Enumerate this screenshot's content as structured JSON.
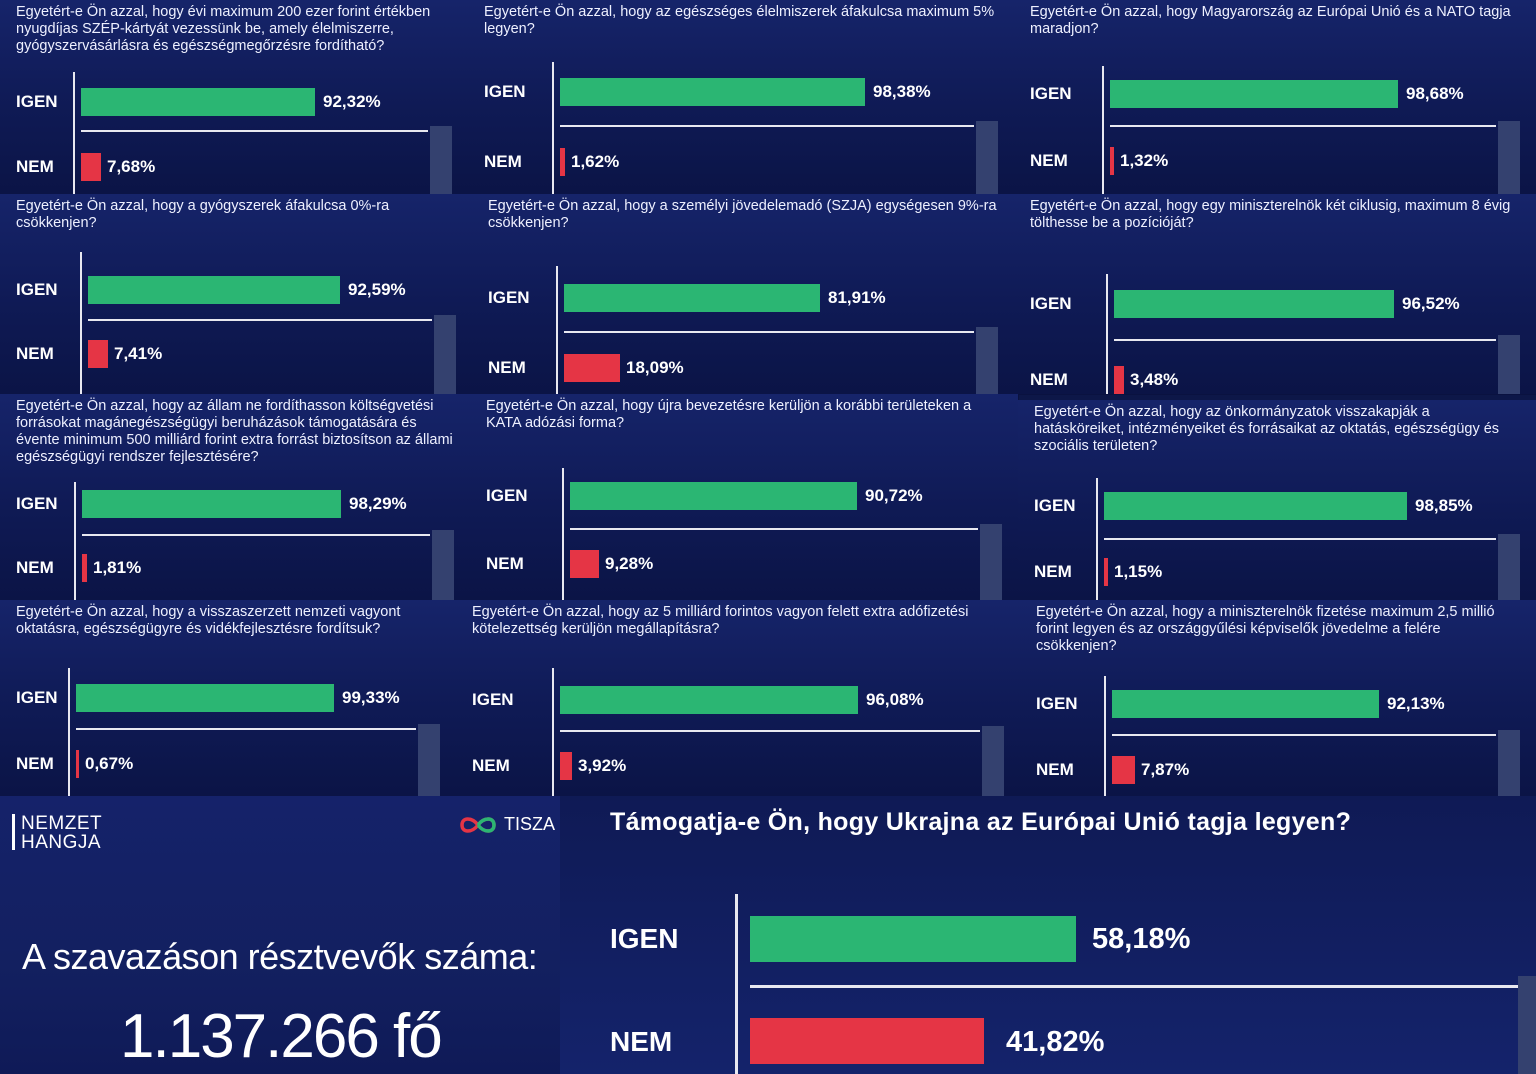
{
  "colors": {
    "yes": "#2bb673",
    "no": "#e53545",
    "background": "#0f1a55"
  },
  "labels": {
    "yes": "IGEN",
    "no": "NEM"
  },
  "brand": {
    "line1": "NEMZET",
    "line2": "HANGJA",
    "partner": "TISZA",
    "partner_icon": "infinity-logo-icon"
  },
  "voters": {
    "label": "A szavazáson résztvevők száma:",
    "count": "1.137.266 fő"
  },
  "chart_data": [
    {
      "type": "bar",
      "title": "Egyetért-e Ön azzal, hogy évi maximum 200 ezer forint értékben nyugdíjas SZÉP-kártyát vezessünk be, amely élelmiszerre, gyógyszervásárlásra és egészségmegőrzésre fordítható?",
      "categories": [
        "IGEN",
        "NEM"
      ],
      "values": [
        92.32,
        7.68
      ],
      "value_labels": [
        "92,32%",
        "7,68%"
      ]
    },
    {
      "type": "bar",
      "title": "Egyetért-e Ön azzal, hogy az egészséges élelmiszerek áfakulcsa maximum 5% legyen?",
      "categories": [
        "IGEN",
        "NEM"
      ],
      "values": [
        98.38,
        1.62
      ],
      "value_labels": [
        "98,38%",
        "1,62%"
      ]
    },
    {
      "type": "bar",
      "title": "Egyetért-e Ön azzal, hogy Magyarország az Európai Unió és a NATO tagja maradjon?",
      "categories": [
        "IGEN",
        "NEM"
      ],
      "values": [
        98.68,
        1.32
      ],
      "value_labels": [
        "98,68%",
        "1,32%"
      ]
    },
    {
      "type": "bar",
      "title": "Egyetért-e Ön azzal, hogy a gyógyszerek áfakulcsa 0%-ra csökkenjen?",
      "categories": [
        "IGEN",
        "NEM"
      ],
      "values": [
        92.59,
        7.41
      ],
      "value_labels": [
        "92,59%",
        "7,41%"
      ]
    },
    {
      "type": "bar",
      "title": "Egyetért-e Ön azzal, hogy a személyi jövedelemadó (SZJA) egységesen 9%-ra csökkenjen?",
      "categories": [
        "IGEN",
        "NEM"
      ],
      "values": [
        81.91,
        18.09
      ],
      "value_labels": [
        "81,91%",
        "18,09%"
      ]
    },
    {
      "type": "bar",
      "title": "Egyetért-e Ön azzal, hogy egy miniszterelnök két ciklusig, maximum 8 évig tölthesse be a pozícióját?",
      "categories": [
        "IGEN",
        "NEM"
      ],
      "values": [
        96.52,
        3.48
      ],
      "value_labels": [
        "96,52%",
        "3,48%"
      ]
    },
    {
      "type": "bar",
      "title": "Egyetért-e Ön azzal, hogy az állam ne fordíthasson költségvetési forrásokat magánegészségügyi beruházások támogatására és évente minimum 500 milliárd forint extra forrást biztosítson az állami egészségügyi rendszer fejlesztésére?",
      "categories": [
        "IGEN",
        "NEM"
      ],
      "values": [
        98.29,
        1.81
      ],
      "value_labels": [
        "98,29%",
        "1,81%"
      ]
    },
    {
      "type": "bar",
      "title": "Egyetért-e Ön azzal, hogy újra bevezetésre kerüljön a korábbi területeken a KATA adózási forma?",
      "categories": [
        "IGEN",
        "NEM"
      ],
      "values": [
        90.72,
        9.28
      ],
      "value_labels": [
        "90,72%",
        "9,28%"
      ]
    },
    {
      "type": "bar",
      "title": "Egyetért-e Ön azzal, hogy az önkormányzatok visszakapják a hatásköreiket, intézményeiket és forrásaikat az oktatás, egészségügy és szociális területen?",
      "categories": [
        "IGEN",
        "NEM"
      ],
      "values": [
        98.85,
        1.15
      ],
      "value_labels": [
        "98,85%",
        "1,15%"
      ]
    },
    {
      "type": "bar",
      "title": "Egyetért-e Ön azzal, hogy a visszaszerzett nemzeti vagyont oktatásra, egészségügyre és vidékfejlesztésre fordítsuk?",
      "categories": [
        "IGEN",
        "NEM"
      ],
      "values": [
        99.33,
        0.67
      ],
      "value_labels": [
        "99,33%",
        "0,67%"
      ]
    },
    {
      "type": "bar",
      "title": "Egyetért-e Ön azzal, hogy az 5 milliárd forintos vagyon felett extra adófizetési kötelezettség kerüljön megállapításra?",
      "categories": [
        "IGEN",
        "NEM"
      ],
      "values": [
        96.08,
        3.92
      ],
      "value_labels": [
        "96,08%",
        "3,92%"
      ]
    },
    {
      "type": "bar",
      "title": "Egyetért-e Ön azzal, hogy a miniszterelnök fizetése maximum 2,5 millió forint legyen és az országgyűlési képviselők jövedelme a felére csökkenjen?",
      "categories": [
        "IGEN",
        "NEM"
      ],
      "values": [
        92.13,
        7.87
      ],
      "value_labels": [
        "92,13%",
        "7,87%"
      ]
    },
    {
      "type": "bar",
      "title": "Támogatja-e Ön, hogy Ukrajna az Európai Unió tagja legyen?",
      "categories": [
        "IGEN",
        "NEM"
      ],
      "values": [
        58.18,
        41.82
      ],
      "value_labels": [
        "58,18%",
        "41,82%"
      ]
    }
  ]
}
